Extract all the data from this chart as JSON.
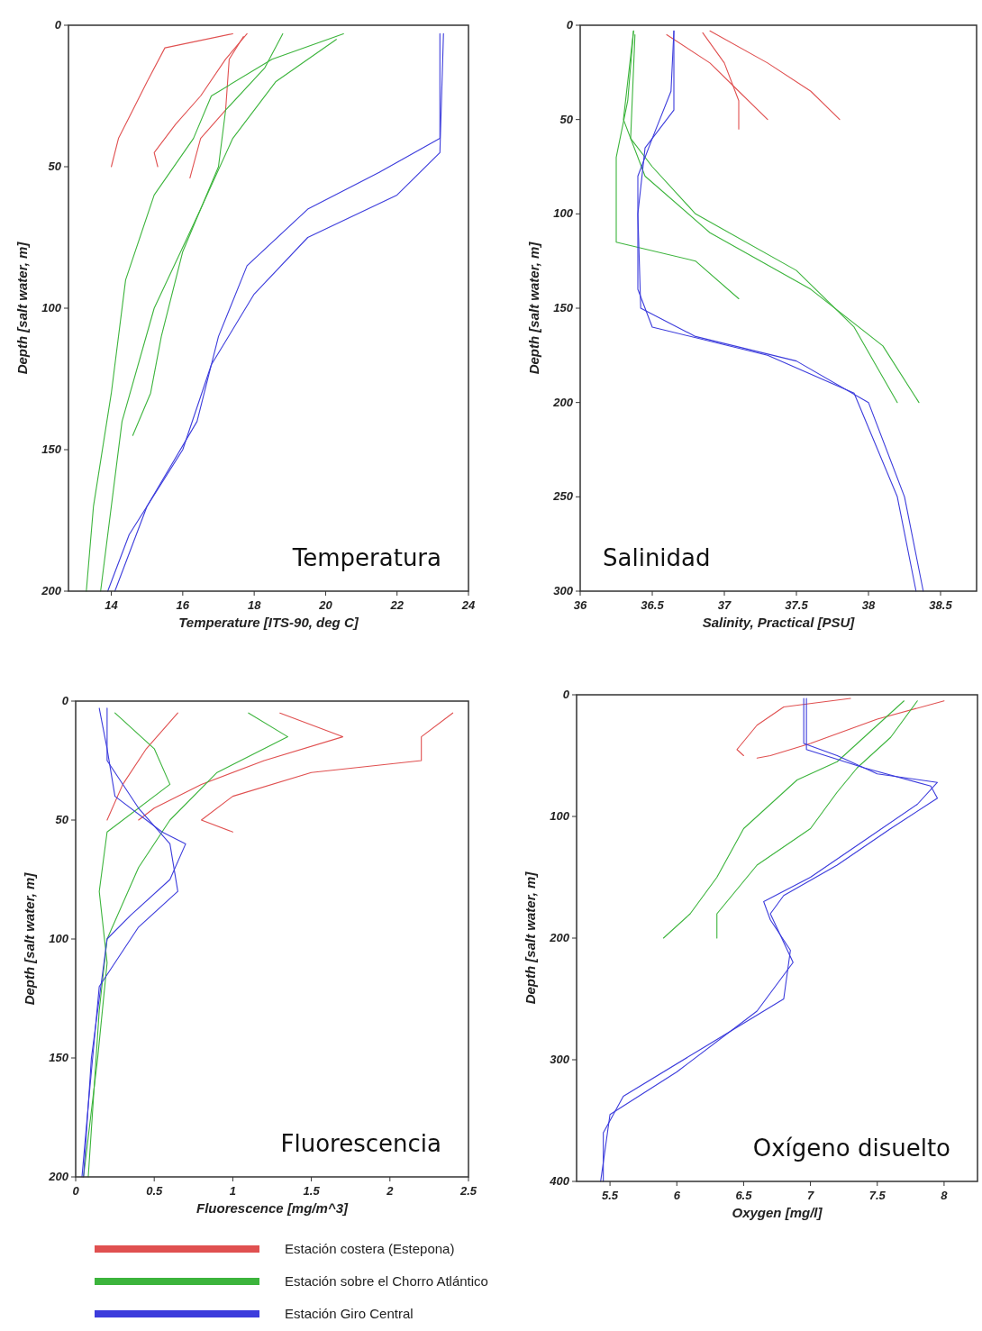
{
  "chart_data": [
    {
      "type": "line",
      "title": "Temperatura",
      "xlabel": "Temperature [ITS-90, deg C]",
      "ylabel": "Depth [salt water, m]",
      "xlim": [
        12.8,
        24
      ],
      "xticks": [
        14,
        16,
        18,
        20,
        22,
        24
      ],
      "ylim": [
        200,
        0
      ],
      "yticks": [
        0,
        50,
        100,
        150,
        200
      ],
      "grid": false,
      "legend": false,
      "series": [
        {
          "color": "#e05050",
          "x": [
            17.4,
            15.5,
            15,
            14.6,
            14.2,
            14
          ],
          "values": [
            3,
            8,
            20,
            30,
            40,
            50
          ]
        },
        {
          "color": "#e05050",
          "x": [
            17.8,
            17.2,
            16.5,
            15.8,
            15.2,
            15.3
          ],
          "values": [
            3,
            12,
            25,
            35,
            45,
            50
          ]
        },
        {
          "color": "#e05050",
          "x": [
            17.7,
            17.3,
            17.2,
            16.5,
            16.2
          ],
          "values": [
            4,
            12,
            30,
            40,
            54
          ]
        },
        {
          "color": "#3cb43c",
          "x": [
            20.5,
            18.5,
            16.8,
            16.3,
            15.2,
            14.4,
            14,
            13.5,
            13.3
          ],
          "values": [
            3,
            12,
            25,
            40,
            60,
            90,
            130,
            170,
            200
          ]
        },
        {
          "color": "#3cb43c",
          "x": [
            18.8,
            18.3,
            17.2,
            17,
            16,
            15.4,
            15.1,
            14.6
          ],
          "values": [
            3,
            15,
            30,
            50,
            80,
            110,
            130,
            145
          ]
        },
        {
          "color": "#3cb43c",
          "x": [
            20.3,
            18.6,
            17.4,
            16.5,
            15.2,
            14.3,
            13.7
          ],
          "values": [
            5,
            20,
            40,
            65,
            100,
            140,
            200
          ]
        },
        {
          "color": "#3c3cdc",
          "x": [
            23.2,
            23.2,
            21.5,
            19.5,
            17.8,
            17,
            16.4,
            15,
            14.1
          ],
          "values": [
            3,
            40,
            52,
            65,
            85,
            110,
            140,
            170,
            200
          ]
        },
        {
          "color": "#3c3cdc",
          "x": [
            23.3,
            23.2,
            22,
            19.5,
            18,
            16.8,
            16,
            14.5,
            13.9
          ],
          "values": [
            3,
            45,
            60,
            75,
            95,
            120,
            150,
            180,
            200
          ]
        }
      ]
    },
    {
      "type": "line",
      "title": "Salinidad",
      "xlabel": "Salinity, Practical [PSU]",
      "ylabel": "Depth [salt water, m]",
      "xlim": [
        36,
        38.75
      ],
      "xticks": [
        36,
        36.5,
        37,
        37.5,
        38,
        38.5
      ],
      "ylim": [
        300,
        0
      ],
      "yticks": [
        0,
        50,
        100,
        150,
        200,
        250,
        300
      ],
      "grid": false,
      "legend": false,
      "series": [
        {
          "color": "#e05050",
          "x": [
            36.6,
            36.9,
            37.1,
            37.3
          ],
          "values": [
            5,
            20,
            35,
            50
          ]
        },
        {
          "color": "#e05050",
          "x": [
            36.85,
            37,
            37.1,
            37.1
          ],
          "values": [
            4,
            20,
            40,
            55
          ]
        },
        {
          "color": "#e05050",
          "x": [
            36.9,
            37.3,
            37.6,
            37.8
          ],
          "values": [
            3,
            20,
            35,
            50
          ]
        },
        {
          "color": "#3cb43c",
          "x": [
            36.37,
            36.33,
            36.25,
            36.25,
            36.8,
            37.1
          ],
          "values": [
            3,
            40,
            70,
            115,
            125,
            145
          ]
        },
        {
          "color": "#3cb43c",
          "x": [
            36.37,
            36.3,
            36.45,
            36.9,
            37.6,
            38.1,
            38.35
          ],
          "values": [
            3,
            50,
            80,
            110,
            140,
            170,
            200
          ]
        },
        {
          "color": "#3cb43c",
          "x": [
            36.38,
            36.35,
            36.5,
            36.8,
            37.5,
            37.9,
            38.2
          ],
          "values": [
            5,
            60,
            75,
            100,
            130,
            160,
            200
          ]
        },
        {
          "color": "#3c3cdc",
          "x": [
            36.65,
            36.65,
            36.45,
            36.4,
            36.42,
            36.8,
            37.5,
            38,
            38.25,
            38.38
          ],
          "values": [
            3,
            45,
            65,
            100,
            150,
            165,
            178,
            200,
            250,
            300
          ]
        },
        {
          "color": "#3c3cdc",
          "x": [
            36.65,
            36.63,
            36.5,
            36.4,
            36.4,
            36.5,
            37.3,
            37.9,
            38.2,
            38.33
          ],
          "values": [
            3,
            35,
            60,
            80,
            140,
            160,
            175,
            195,
            250,
            300
          ]
        }
      ]
    },
    {
      "type": "line",
      "title": "Fluorescencia",
      "xlabel": "Fluorescence [mg/m^3]",
      "ylabel": "Depth [salt water, m]",
      "xlim": [
        0,
        2.5
      ],
      "xticks": [
        0,
        0.5,
        1,
        1.5,
        2,
        2.5
      ],
      "ylim": [
        200,
        0
      ],
      "yticks": [
        0,
        50,
        100,
        150,
        200
      ],
      "grid": false,
      "legend": "bottom",
      "series": [
        {
          "name": "Estación costera (Estepona)",
          "color": "#e05050",
          "x": [
            2.4,
            2.2,
            2.2,
            1.5,
            1,
            0.8,
            1
          ],
          "values": [
            5,
            15,
            25,
            30,
            40,
            50,
            55
          ]
        },
        {
          "color": "#e05050",
          "x": [
            1.3,
            1.7,
            1.2,
            0.8,
            0.5,
            0.4
          ],
          "values": [
            5,
            15,
            25,
            35,
            45,
            50
          ]
        },
        {
          "color": "#e05050",
          "x": [
            0.65,
            0.45,
            0.3,
            0.2
          ],
          "values": [
            5,
            20,
            35,
            50
          ]
        },
        {
          "name": "Estación sobre el Chorro Atlántico",
          "color": "#3cb43c",
          "x": [
            0.25,
            0.5,
            0.6,
            0.2,
            0.15,
            0.2,
            0.14,
            0.05
          ],
          "values": [
            5,
            20,
            35,
            55,
            80,
            110,
            150,
            200
          ]
        },
        {
          "color": "#3cb43c",
          "x": [
            1.1,
            1.35,
            0.9,
            0.6,
            0.4,
            0.2,
            0.15,
            0.08
          ],
          "values": [
            5,
            15,
            30,
            50,
            70,
            100,
            130,
            200
          ]
        },
        {
          "name": "Estación Giro Central",
          "color": "#3c3cdc",
          "x": [
            0.15,
            0.2,
            0.25,
            0.55,
            0.7,
            0.6,
            0.35,
            0.2,
            0.1,
            0.05
          ],
          "values": [
            3,
            20,
            40,
            55,
            60,
            75,
            90,
            100,
            150,
            200
          ]
        },
        {
          "color": "#3c3cdc",
          "x": [
            0.2,
            0.2,
            0.4,
            0.6,
            0.65,
            0.4,
            0.15,
            0.08,
            0.04
          ],
          "values": [
            3,
            25,
            45,
            60,
            80,
            95,
            120,
            170,
            200
          ]
        }
      ]
    },
    {
      "type": "line",
      "title": "Oxígeno disuelto",
      "xlabel": "Oxygen [mg/l]",
      "ylabel": "Depth [salt water, m]",
      "xlim": [
        5.25,
        8.25
      ],
      "xticks": [
        5.5,
        6,
        6.5,
        7,
        7.5,
        8
      ],
      "ylim": [
        400,
        0
      ],
      "yticks": [
        0,
        100,
        200,
        300,
        400
      ],
      "grid": false,
      "legend": false,
      "series": [
        {
          "color": "#e05050",
          "x": [
            7.3,
            6.8,
            6.6,
            6.45,
            6.5
          ],
          "values": [
            3,
            10,
            25,
            45,
            50
          ]
        },
        {
          "color": "#e05050",
          "x": [
            8,
            7.5,
            7,
            6.7,
            6.6
          ],
          "values": [
            5,
            20,
            40,
            50,
            52
          ]
        },
        {
          "color": "#3cb43c",
          "x": [
            7.7,
            7.5,
            7.2,
            6.9,
            6.5,
            6.3,
            6.1,
            5.9
          ],
          "values": [
            5,
            25,
            55,
            70,
            110,
            150,
            180,
            200
          ]
        },
        {
          "color": "#3cb43c",
          "x": [
            7.8,
            7.6,
            7.35,
            7.2,
            7,
            6.6,
            6.3,
            6.3
          ],
          "values": [
            5,
            35,
            60,
            80,
            110,
            140,
            180,
            200
          ]
        },
        {
          "color": "#3c3cdc",
          "x": [
            6.95,
            6.95,
            7.2,
            7.5,
            7.95,
            7.8,
            7.4,
            7,
            6.65,
            6.7,
            6.85,
            6.8,
            6.2,
            5.6,
            5.45,
            5.45
          ],
          "values": [
            3,
            40,
            50,
            65,
            72,
            90,
            120,
            150,
            170,
            185,
            210,
            250,
            290,
            330,
            360,
            400
          ]
        },
        {
          "color": "#3c3cdc",
          "x": [
            6.97,
            6.97,
            7.4,
            7.9,
            7.95,
            7.6,
            7.2,
            6.8,
            6.7,
            6.87,
            6.6,
            6,
            5.5,
            5.43
          ],
          "values": [
            3,
            45,
            60,
            75,
            85,
            110,
            140,
            165,
            180,
            220,
            260,
            310,
            345,
            400
          ]
        }
      ]
    }
  ]
}
